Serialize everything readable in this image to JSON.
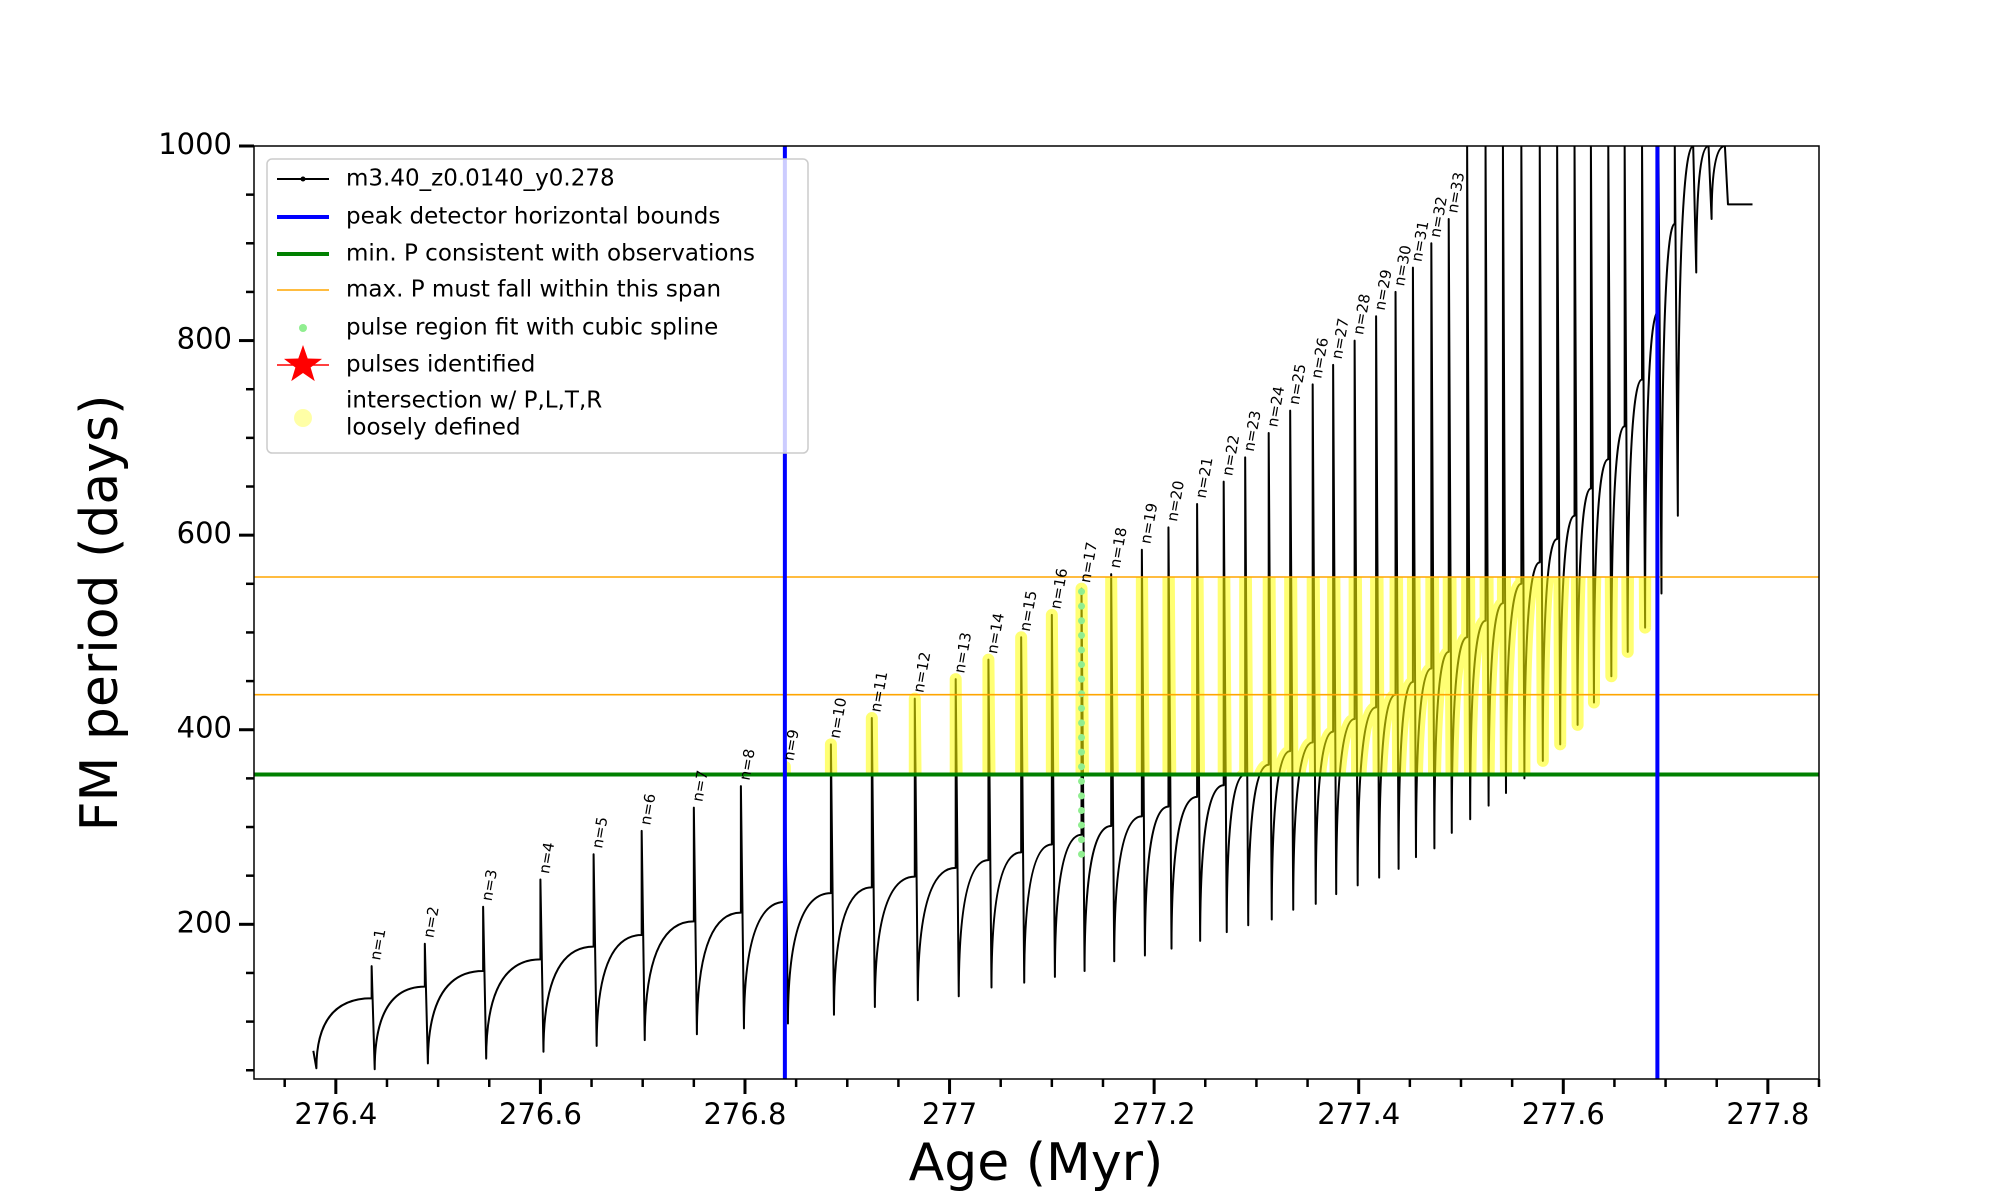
{
  "chart_data": {
    "type": "line",
    "x_label": "Age (Myr)",
    "y_label": "FM period (days)",
    "xlim": [
      276.32,
      277.85
    ],
    "ylim": [
      41,
      1000
    ],
    "xticks": [
      276.4,
      276.6,
      276.8,
      277.0,
      277.2,
      277.4,
      277.6,
      277.8
    ],
    "yticks": [
      200,
      400,
      600,
      800,
      1000
    ],
    "xminorticks": [
      276.35,
      276.45,
      276.5,
      276.55,
      276.65,
      276.7,
      276.75,
      276.85,
      276.9,
      276.95,
      277.05,
      277.1,
      277.15,
      277.25,
      277.3,
      277.35,
      277.45,
      277.5,
      277.55,
      277.65,
      277.7,
      277.75,
      277.85
    ],
    "yminorticks": [
      50,
      100,
      150,
      250,
      300,
      350,
      450,
      500,
      550,
      650,
      700,
      750,
      850,
      900,
      950
    ],
    "legend": "upper left",
    "series": [
      {
        "name": "m3.40_z0.0140_y0.278",
        "color": "#000000",
        "kind": "track",
        "x": [
          276.378,
          276.381,
          276.435,
          276.435,
          276.438,
          276.487,
          276.487,
          276.49,
          276.544,
          276.544,
          276.547,
          276.6,
          276.6,
          276.603,
          276.652,
          276.652,
          276.655,
          276.699,
          276.699,
          276.702,
          276.75,
          276.75,
          276.753,
          276.796,
          276.796,
          276.799,
          276.839,
          276.839,
          276.842,
          276.884,
          276.884,
          276.887,
          276.924,
          276.924,
          276.927,
          276.966,
          276.966,
          276.969,
          277.006,
          277.006,
          277.009,
          277.038,
          277.038,
          277.041,
          277.07,
          277.07,
          277.073,
          277.1,
          277.1,
          277.103,
          277.129,
          277.129,
          277.132,
          277.158,
          277.158,
          277.161,
          277.188,
          277.188,
          277.191,
          277.214,
          277.214,
          277.217,
          277.242,
          277.242,
          277.245,
          277.268,
          277.268,
          277.271,
          277.289,
          277.289,
          277.292,
          277.312,
          277.312,
          277.315,
          277.333,
          277.333,
          277.336,
          277.355,
          277.355,
          277.358,
          277.375,
          277.375,
          277.378,
          277.396,
          277.396,
          277.399,
          277.417,
          277.417,
          277.42,
          277.436,
          277.436,
          277.439,
          277.453,
          277.453,
          277.456,
          277.471,
          277.471,
          277.474,
          277.488,
          277.488,
          277.491,
          277.506,
          277.506,
          277.509,
          277.524,
          277.524,
          277.527,
          277.541,
          277.541,
          277.544,
          277.559,
          277.559,
          277.562,
          277.577,
          277.577,
          277.58,
          277.594,
          277.594,
          277.597,
          277.611,
          277.611,
          277.614,
          277.627,
          277.627,
          277.63,
          277.644,
          277.644,
          277.647,
          277.66,
          277.66,
          277.663,
          277.677,
          277.677,
          277.68,
          277.693,
          277.693,
          277.696,
          277.709,
          277.709,
          277.712,
          277.727,
          277.727,
          277.73,
          277.742,
          277.742,
          277.745,
          277.758,
          277.758,
          277.761,
          277.785
        ],
        "values": [
          70,
          52,
          124,
          157,
          51,
          136,
          180,
          57,
          152,
          218,
          62,
          164,
          246,
          69,
          177,
          272,
          75,
          189,
          296,
          81,
          203,
          320,
          87,
          212,
          342,
          93,
          223,
          362,
          98,
          232,
          385,
          107,
          238,
          412,
          115,
          249,
          432,
          122,
          258,
          452,
          126,
          266,
          472,
          135,
          274,
          495,
          140,
          282,
          518,
          146,
          292,
          545,
          152,
          301,
          560,
          162,
          311,
          585,
          168,
          321,
          608,
          175,
          331,
          632,
          183,
          343,
          655,
          192,
          354,
          680,
          199,
          364,
          705,
          205,
          378,
          728,
          215,
          387,
          755,
          221,
          398,
          775,
          231,
          411,
          800,
          240,
          423,
          825,
          248,
          436,
          850,
          257,
          449,
          875,
          269,
          463,
          900,
          278,
          480,
          925,
          294,
          495,
          1000,
          308,
          512,
          1000,
          322,
          530,
          1000,
          335,
          550,
          1000,
          350,
          572,
          1000,
          368,
          596,
          1000,
          385,
          620,
          1000,
          405,
          648,
          1000,
          428,
          678,
          1000,
          455,
          712,
          1000,
          480,
          760,
          1000,
          505,
          830,
          1000,
          540,
          920,
          1000,
          620,
          1000,
          1000,
          870,
          1000,
          1000,
          925,
          1000,
          1000,
          940,
          940
        ]
      },
      {
        "name": "peak detector horizontal bounds",
        "color": "#0000ff",
        "kind": "vline",
        "x": [
          276.839,
          277.692
        ]
      },
      {
        "name": "min. P consistent with observations",
        "color": "#008000",
        "kind": "hline",
        "values": [
          354
        ]
      },
      {
        "name": "max. P must fall within this span",
        "color": "#ffa500",
        "kind": "hline",
        "values": [
          436,
          557
        ]
      },
      {
        "name": "pulse region fit with cubic spline",
        "color": "#90ee90",
        "kind": "scatter",
        "x": [
          277.129,
          277.129,
          277.129,
          277.129,
          277.129,
          277.129,
          277.129,
          277.129,
          277.129,
          277.129,
          277.129,
          277.129,
          277.129,
          277.129,
          277.129,
          277.129,
          277.129,
          277.129,
          277.129
        ],
        "values": [
          272,
          287,
          302,
          317,
          332,
          347,
          362,
          377,
          392,
          407,
          422,
          437,
          452,
          467,
          482,
          497,
          512,
          527,
          542
        ]
      },
      {
        "name": "pulses identified",
        "color": "#ff0000",
        "kind": "star"
      },
      {
        "name": [
          "intersection w/ P,L,T,R",
          "loosely defined"
        ],
        "color": "#ffff00",
        "kind": "highlight"
      }
    ],
    "pulse_labels": [
      "n=1",
      "n=2",
      "n=3",
      "n=4",
      "n=5",
      "n=6",
      "n=7",
      "n=8",
      "n=9",
      "n=10",
      "n=11",
      "n=12",
      "n=13",
      "n=14",
      "n=15",
      "n=16",
      "n=17",
      "n=18",
      "n=19",
      "n=20",
      "n=21",
      "n=22",
      "n=23",
      "n=24",
      "n=25",
      "n=26",
      "n=27",
      "n=28",
      "n=29",
      "n=30",
      "n=31",
      "n=32",
      "n=33"
    ]
  }
}
